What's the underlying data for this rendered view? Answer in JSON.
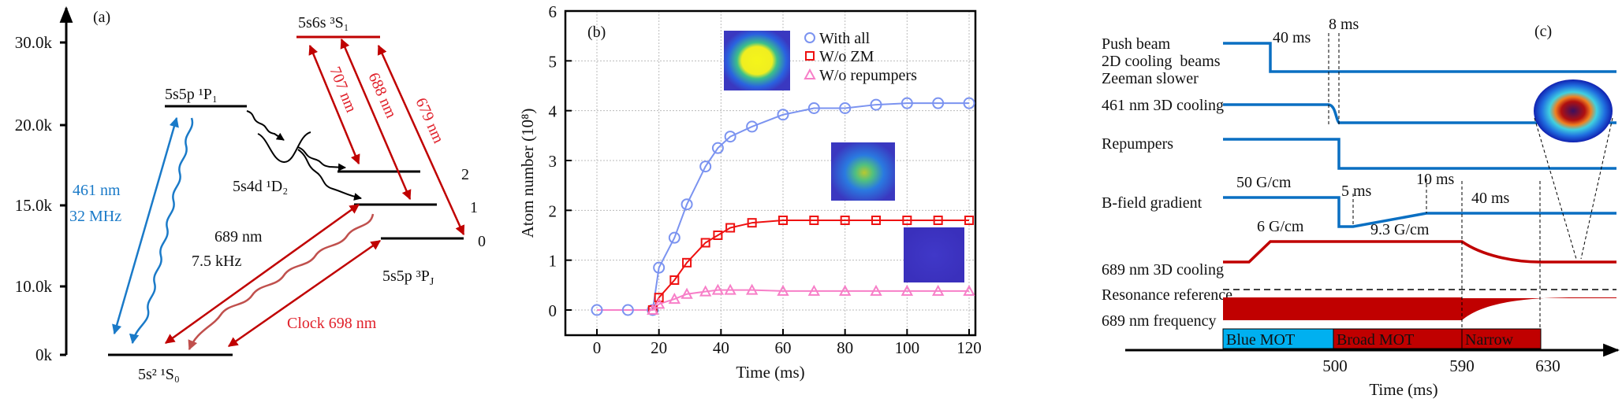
{
  "panel_a": {
    "label": "(a)",
    "y_ticks": [
      "30.0k",
      "20.0k",
      "15.0k",
      "10.0k",
      "0k"
    ],
    "levels": {
      "p1": "5s5p ¹P₁",
      "s1": "5s6s ³S₁",
      "d2": "5s4d ¹D₂",
      "pj": "5s5p ³P",
      "pj_sub": "J",
      "s0": "5s² ¹S₀",
      "j2": "2",
      "j1": "1",
      "j0": "0"
    },
    "transitions": {
      "blue_wl": "461 nm",
      "blue_width": "32 MHz",
      "red_wl": "689 nm",
      "red_width": "7.5 kHz",
      "clock": "Clock 698 nm",
      "t707": "707 nm",
      "t688": "688 nm",
      "t679": "679 nm"
    },
    "colors": {
      "blue": "#1a7ac8",
      "red": "#c00000",
      "wavy_red": "#c0504d"
    }
  },
  "chart_data": {
    "type": "scatter",
    "panel_label": "(b)",
    "xlabel": "Time (ms)",
    "ylabel": "Atom number (10⁸)",
    "xlim": [
      -10,
      123
    ],
    "ylim": [
      -0.5,
      6
    ],
    "x_ticks": [
      0,
      20,
      40,
      60,
      80,
      100,
      120
    ],
    "y_ticks": [
      0,
      1,
      2,
      3,
      4,
      5,
      6
    ],
    "grid": true,
    "legend_position": "top-right",
    "series": [
      {
        "name": "With all",
        "marker": "circle",
        "color": "#7b93f0",
        "x": [
          0,
          10,
          18,
          20,
          25,
          29,
          35,
          39,
          43,
          50,
          60,
          70,
          80,
          90,
          100,
          110,
          120
        ],
        "y": [
          0,
          0,
          0,
          0.85,
          1.45,
          2.12,
          2.88,
          3.25,
          3.48,
          3.68,
          3.92,
          4.05,
          4.05,
          4.12,
          4.15,
          4.15,
          4.15
        ]
      },
      {
        "name": "W/o ZM",
        "marker": "square",
        "color": "#ee1111",
        "x": [
          18,
          20,
          25,
          29,
          35,
          39,
          43,
          50,
          60,
          70,
          80,
          90,
          100,
          110,
          120
        ],
        "y": [
          0,
          0.25,
          0.6,
          0.95,
          1.35,
          1.5,
          1.65,
          1.75,
          1.8,
          1.8,
          1.8,
          1.8,
          1.8,
          1.8,
          1.8
        ]
      },
      {
        "name": "W/o repumpers",
        "marker": "triangle",
        "color": "#f77fc8",
        "x": [
          18,
          20,
          25,
          29,
          35,
          39,
          43,
          50,
          60,
          70,
          80,
          90,
          100,
          110,
          120
        ],
        "y": [
          0,
          0.12,
          0.22,
          0.32,
          0.37,
          0.4,
          0.4,
          0.4,
          0.38,
          0.38,
          0.38,
          0.38,
          0.38,
          0.38,
          0.38
        ]
      }
    ]
  },
  "panel_c": {
    "label": "(c)",
    "channels": [
      "Push beam",
      "2D cooling  beams",
      "Zeeman slower",
      "461 nm 3D cooling",
      "Repumpers",
      "B-field gradient",
      "689 nm 3D cooling",
      "Resonance reference",
      "689 nm frequency"
    ],
    "annotations": {
      "push_delay": "40 ms",
      "blue_ramp": "8 ms",
      "grad_high": "50 G/cm",
      "grad_hold": "5 ms",
      "grad_ramp": "10 ms",
      "narrow_ramp": "40 ms",
      "grad_low": "6 G/cm",
      "grad_final": "9.3 G/cm"
    },
    "phases": [
      {
        "label": "Blue MOT",
        "color": "#00b0f0"
      },
      {
        "label": "Broad MOT",
        "color": "#c00000"
      },
      {
        "label": "Narrow",
        "color": "#c00000"
      }
    ],
    "time_ticks": [
      "500",
      "590",
      "630"
    ],
    "xlabel": "Time (ms)",
    "colors": {
      "blue": "#0a6fc2",
      "red": "#c00000",
      "reference": "#c0504d"
    }
  }
}
